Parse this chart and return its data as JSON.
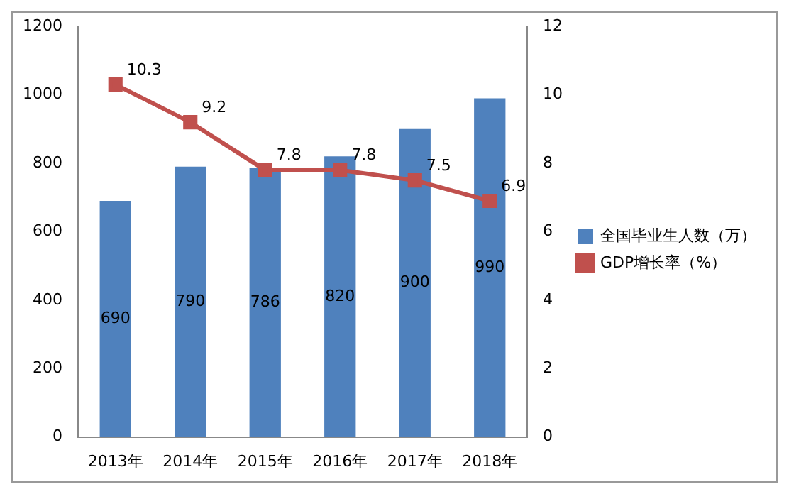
{
  "chart_data": {
    "type": "bar",
    "categories": [
      "2013年",
      "2014年",
      "2015年",
      "2016年",
      "2017年",
      "2018年"
    ],
    "series": [
      {
        "name": "全国毕业生人数（万）",
        "color": "#4f81bd",
        "values": [
          690,
          790,
          786,
          820,
          900,
          990
        ]
      },
      {
        "name": "GDP增长率（%）",
        "type": "line",
        "axis": "y2",
        "color": "#c0504d",
        "values": [
          10.3,
          9.2,
          7.8,
          7.8,
          7.5,
          6.9
        ]
      }
    ],
    "ylim": [
      0,
      1200
    ],
    "yticks": [
      0,
      200,
      400,
      600,
      800,
      1000,
      1200
    ],
    "y2lim": [
      0,
      12
    ],
    "y2ticks": [
      0,
      2,
      4,
      6,
      8,
      10,
      12
    ],
    "grid": false,
    "legend": "right",
    "marker": "square",
    "line_style": "solid",
    "data_labels": true
  }
}
